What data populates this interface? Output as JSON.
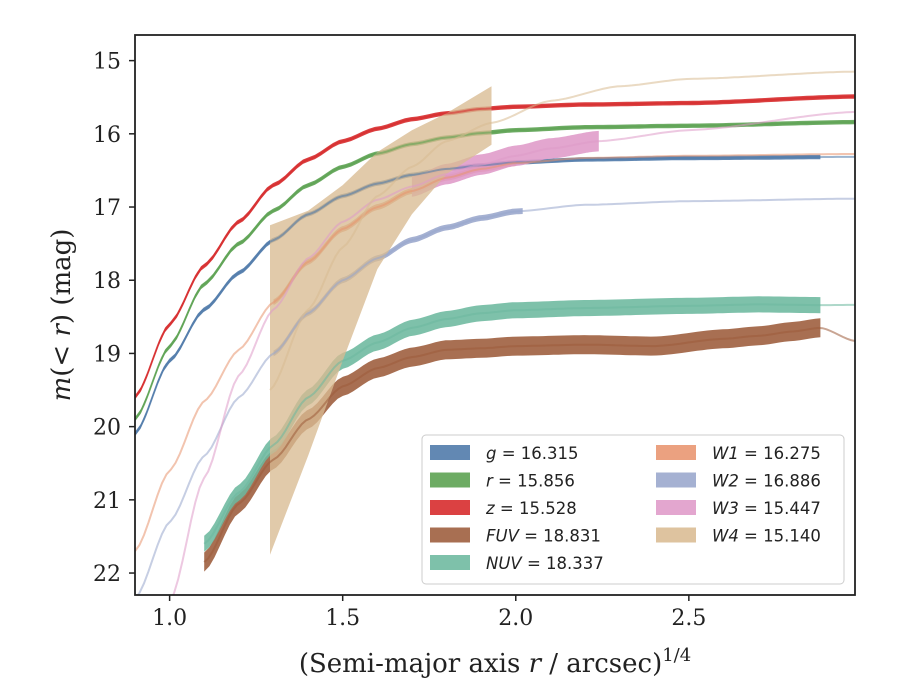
{
  "chart_data": {
    "type": "line",
    "xlabel": "(Semi-major axis r / arcsec)",
    "xlabel_parts": {
      "before": "(Semi-major axis ",
      "var": "r",
      "after": " / arcsec)",
      "sup": "1/4"
    },
    "ylabel": "m(< r) (mag)",
    "ylabel_parts": {
      "var1": "m",
      "mid1": "(< ",
      "var2": "r",
      "mid2": ") (mag)"
    },
    "xlim": [
      0.9,
      2.98
    ],
    "ylim": [
      22.3,
      14.65
    ],
    "y_inverted": true,
    "x_ticks": [
      1.0,
      1.5,
      2.0,
      2.5
    ],
    "x_tick_labels": [
      "1.0",
      "1.5",
      "2.0",
      "2.5"
    ],
    "y_ticks": [
      15,
      16,
      17,
      18,
      19,
      20,
      21,
      22
    ],
    "y_tick_labels": [
      "15",
      "16",
      "17",
      "18",
      "19",
      "20",
      "21",
      "22"
    ],
    "grid": false,
    "legend_position": "lower-right",
    "series": [
      {
        "name": "g = 16.315",
        "band": "g",
        "total": "16.315",
        "color": "#4c78a8",
        "profile": [
          [
            0.9,
            20.1
          ],
          [
            1.0,
            19.1
          ],
          [
            1.1,
            18.4
          ],
          [
            1.2,
            17.9
          ],
          [
            1.3,
            17.45
          ],
          [
            1.4,
            17.1
          ],
          [
            1.5,
            16.85
          ],
          [
            1.6,
            16.68
          ],
          [
            1.7,
            16.56
          ],
          [
            1.8,
            16.48
          ],
          [
            1.9,
            16.43
          ],
          [
            2.0,
            16.39
          ],
          [
            2.2,
            16.35
          ],
          [
            2.5,
            16.33
          ],
          [
            2.98,
            16.315
          ]
        ],
        "band_ranges": [
          [
            0.9,
            2.88,
            0.03
          ]
        ]
      },
      {
        "name": "r = 15.856",
        "band": "r",
        "total": "15.856",
        "color": "#59a14f",
        "profile": [
          [
            0.9,
            19.9
          ],
          [
            1.0,
            18.9
          ],
          [
            1.1,
            18.05
          ],
          [
            1.2,
            17.5
          ],
          [
            1.3,
            17.05
          ],
          [
            1.4,
            16.7
          ],
          [
            1.5,
            16.45
          ],
          [
            1.6,
            16.27
          ],
          [
            1.7,
            16.14
          ],
          [
            1.8,
            16.05
          ],
          [
            1.9,
            15.99
          ],
          [
            2.0,
            15.95
          ],
          [
            2.2,
            15.91
          ],
          [
            2.5,
            15.89
          ],
          [
            2.98,
            15.84
          ]
        ],
        "band_ranges": [
          [
            0.9,
            2.98,
            0.03
          ]
        ]
      },
      {
        "name": "z = 15.528",
        "band": "z",
        "total": "15.528",
        "color": "#d62728",
        "profile": [
          [
            0.9,
            19.6
          ],
          [
            1.0,
            18.6
          ],
          [
            1.1,
            17.8
          ],
          [
            1.2,
            17.2
          ],
          [
            1.3,
            16.7
          ],
          [
            1.4,
            16.35
          ],
          [
            1.5,
            16.1
          ],
          [
            1.6,
            15.93
          ],
          [
            1.7,
            15.8
          ],
          [
            1.8,
            15.72
          ],
          [
            1.9,
            15.66
          ],
          [
            2.0,
            15.63
          ],
          [
            2.2,
            15.6
          ],
          [
            2.5,
            15.58
          ],
          [
            2.98,
            15.49
          ]
        ],
        "band_ranges": [
          [
            0.9,
            2.98,
            0.03
          ]
        ]
      },
      {
        "name": "FUV = 18.831",
        "band": "FUV",
        "total": "18.831",
        "color": "#9c5b3a",
        "profile": [
          [
            1.1,
            21.85
          ],
          [
            1.2,
            21.05
          ],
          [
            1.3,
            20.45
          ],
          [
            1.4,
            19.9
          ],
          [
            1.5,
            19.45
          ],
          [
            1.6,
            19.2
          ],
          [
            1.7,
            19.05
          ],
          [
            1.8,
            18.95
          ],
          [
            1.9,
            18.93
          ],
          [
            2.0,
            18.9
          ],
          [
            2.2,
            18.88
          ],
          [
            2.4,
            18.9
          ],
          [
            2.6,
            18.8
          ],
          [
            2.7,
            18.76
          ],
          [
            2.8,
            18.7
          ],
          [
            2.88,
            18.65
          ],
          [
            2.98,
            18.83
          ]
        ],
        "band_ranges": [
          [
            1.1,
            2.88,
            0.13
          ]
        ]
      },
      {
        "name": "NUV = 18.337",
        "band": "NUV",
        "total": "18.337",
        "color": "#6cb89e",
        "profile": [
          [
            1.1,
            21.6
          ],
          [
            1.2,
            20.9
          ],
          [
            1.3,
            20.25
          ],
          [
            1.4,
            19.6
          ],
          [
            1.5,
            19.1
          ],
          [
            1.6,
            18.85
          ],
          [
            1.7,
            18.65
          ],
          [
            1.8,
            18.53
          ],
          [
            1.9,
            18.45
          ],
          [
            2.0,
            18.41
          ],
          [
            2.2,
            18.38
          ],
          [
            2.5,
            18.35
          ],
          [
            2.7,
            18.33
          ],
          [
            2.88,
            18.34
          ],
          [
            2.98,
            18.337
          ]
        ],
        "band_ranges": [
          [
            1.1,
            2.88,
            0.11
          ]
        ]
      },
      {
        "name": "W1 = 16.275",
        "band": "W1",
        "total": "16.275",
        "color": "#e8946e",
        "profile": [
          [
            0.9,
            21.7
          ],
          [
            1.0,
            20.6
          ],
          [
            1.1,
            19.65
          ],
          [
            1.2,
            18.95
          ],
          [
            1.3,
            18.3
          ],
          [
            1.4,
            17.75
          ],
          [
            1.5,
            17.3
          ],
          [
            1.6,
            17.0
          ],
          [
            1.7,
            16.78
          ],
          [
            1.8,
            16.6
          ],
          [
            1.9,
            16.48
          ],
          [
            2.0,
            16.4
          ],
          [
            2.2,
            16.33
          ],
          [
            2.5,
            16.3
          ],
          [
            2.98,
            16.275
          ]
        ],
        "band_ranges": [
          [
            1.3,
            2.0,
            0.04
          ]
        ]
      },
      {
        "name": "W2 = 16.886",
        "band": "W2",
        "total": "16.886",
        "color": "#98a6cc",
        "profile": [
          [
            0.9,
            22.35
          ],
          [
            1.0,
            21.3
          ],
          [
            1.1,
            20.4
          ],
          [
            1.2,
            19.6
          ],
          [
            1.3,
            19.0
          ],
          [
            1.4,
            18.45
          ],
          [
            1.5,
            18.0
          ],
          [
            1.6,
            17.7
          ],
          [
            1.7,
            17.45
          ],
          [
            1.8,
            17.28
          ],
          [
            1.9,
            17.15
          ],
          [
            2.0,
            17.06
          ],
          [
            2.2,
            16.97
          ],
          [
            2.5,
            16.92
          ],
          [
            2.98,
            16.886
          ]
        ],
        "band_ranges": [
          [
            1.3,
            2.02,
            0.04
          ]
        ]
      },
      {
        "name": "W3 = 15.447",
        "band": "W3",
        "total": "15.447",
        "color": "#df9ac8",
        "profile": [
          [
            1.0,
            22.4
          ],
          [
            1.1,
            20.7
          ],
          [
            1.2,
            19.3
          ],
          [
            1.3,
            18.4
          ],
          [
            1.4,
            17.7
          ],
          [
            1.5,
            17.2
          ],
          [
            1.6,
            16.9
          ],
          [
            1.7,
            16.72
          ],
          [
            1.8,
            16.55
          ],
          [
            1.9,
            16.42
          ],
          [
            2.0,
            16.3
          ],
          [
            2.1,
            16.2
          ],
          [
            2.24,
            16.1
          ],
          [
            2.5,
            15.95
          ],
          [
            2.98,
            15.7
          ]
        ],
        "band_ranges": [
          [
            1.7,
            2.24,
            0.14
          ]
        ]
      },
      {
        "name": "W4 = 15.140",
        "band": "W4",
        "total": "15.140",
        "color": "#d9bb92",
        "profile": [
          [
            1.29,
            19.5
          ],
          [
            1.4,
            18.4
          ],
          [
            1.5,
            17.55
          ],
          [
            1.6,
            16.85
          ],
          [
            1.7,
            16.45
          ],
          [
            1.8,
            16.1
          ],
          [
            1.93,
            15.85
          ],
          [
            2.1,
            15.55
          ],
          [
            2.3,
            15.35
          ],
          [
            2.5,
            15.25
          ],
          [
            2.98,
            15.15
          ]
        ],
        "band_ranges": [],
        "band_polygon": [
          [
            1.29,
            17.25
          ],
          [
            1.4,
            17.05
          ],
          [
            1.5,
            16.7
          ],
          [
            1.6,
            16.25
          ],
          [
            1.7,
            15.95
          ],
          [
            1.8,
            15.72
          ],
          [
            1.93,
            15.35
          ],
          [
            1.93,
            16.15
          ],
          [
            1.8,
            16.55
          ],
          [
            1.7,
            17.1
          ],
          [
            1.6,
            17.85
          ],
          [
            1.5,
            19.1
          ],
          [
            1.4,
            20.4
          ],
          [
            1.29,
            21.75
          ]
        ]
      }
    ]
  }
}
